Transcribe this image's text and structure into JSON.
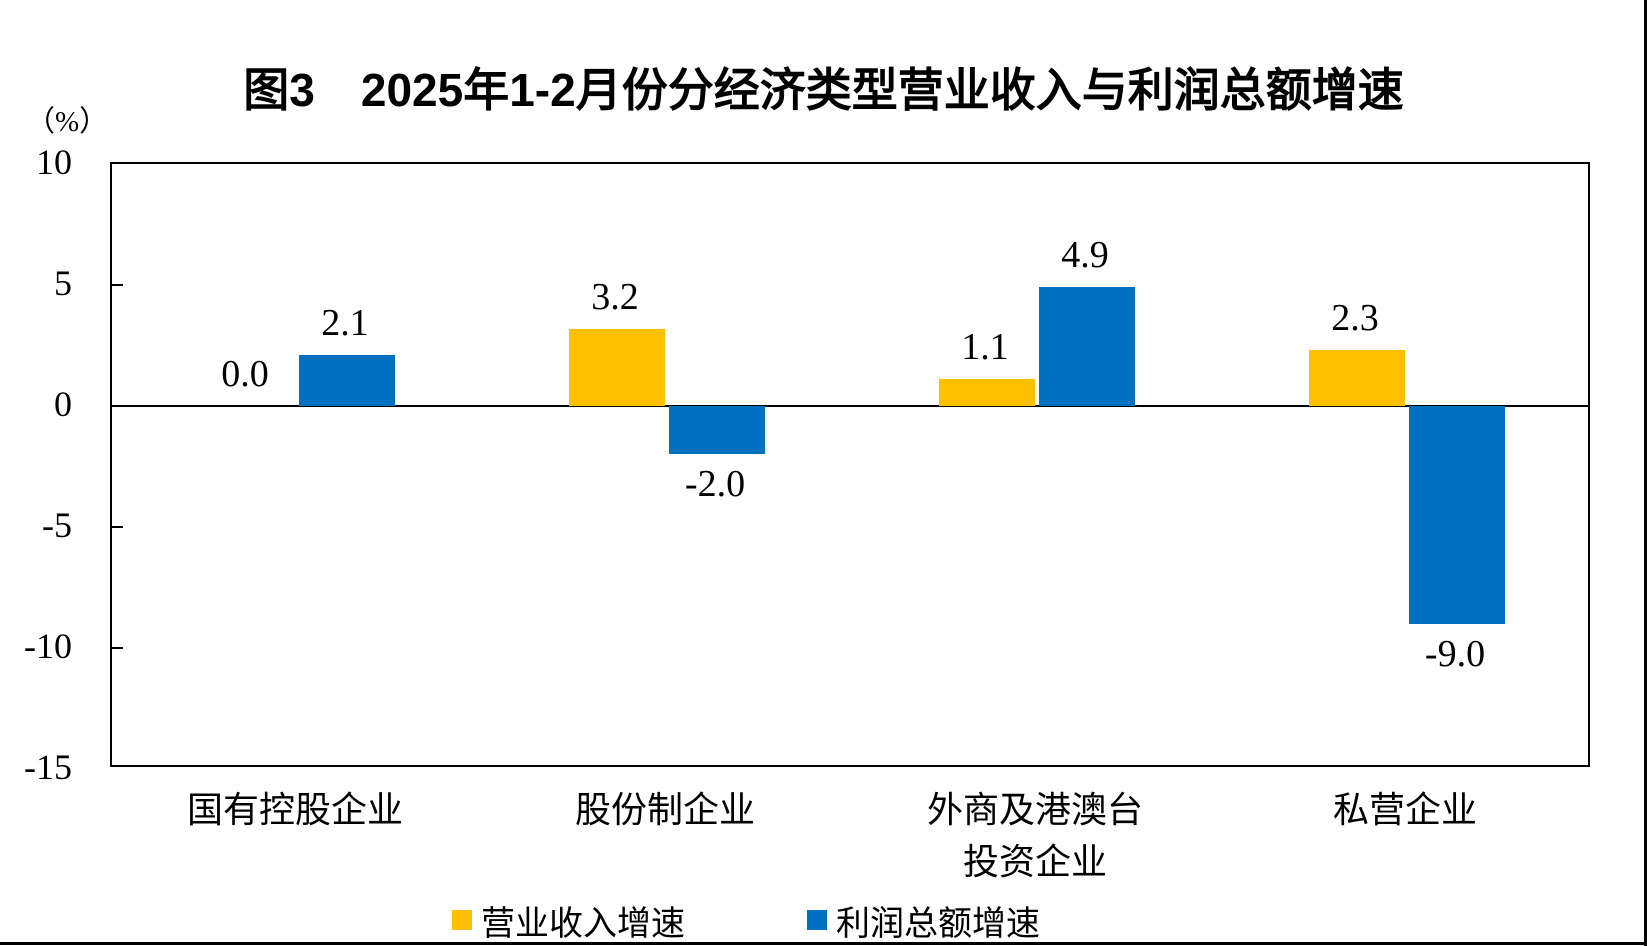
{
  "page": {
    "title": "图3　2025年1-2月份分经济类型营业收入与利润总额增速",
    "unit_label": "（%）"
  },
  "chart_data": {
    "type": "bar",
    "title": "图3 2025年1-2月份分经济类型营业收入与利润总额增速",
    "unit": "%",
    "categories": [
      [
        "国有控股企业"
      ],
      [
        "股份制企业"
      ],
      [
        "外商及港澳台",
        "投资企业"
      ],
      [
        "私营企业"
      ]
    ],
    "series": [
      {
        "name": "营业收入增速",
        "color": "#FFC000",
        "values": [
          0.0,
          3.2,
          1.1,
          2.3
        ],
        "labels": [
          "0.0",
          "3.2",
          "1.1",
          "2.3"
        ]
      },
      {
        "name": "利润总额增速",
        "color": "#0070C0",
        "values": [
          2.1,
          -2.0,
          4.9,
          -9.0
        ],
        "labels": [
          "2.1",
          "-2.0",
          "4.9",
          "-9.0"
        ]
      }
    ],
    "ylim": [
      -15,
      10
    ],
    "yticks": [
      10,
      5,
      0,
      -5,
      -10,
      -15
    ],
    "grid": false,
    "legend_position": "bottom"
  }
}
